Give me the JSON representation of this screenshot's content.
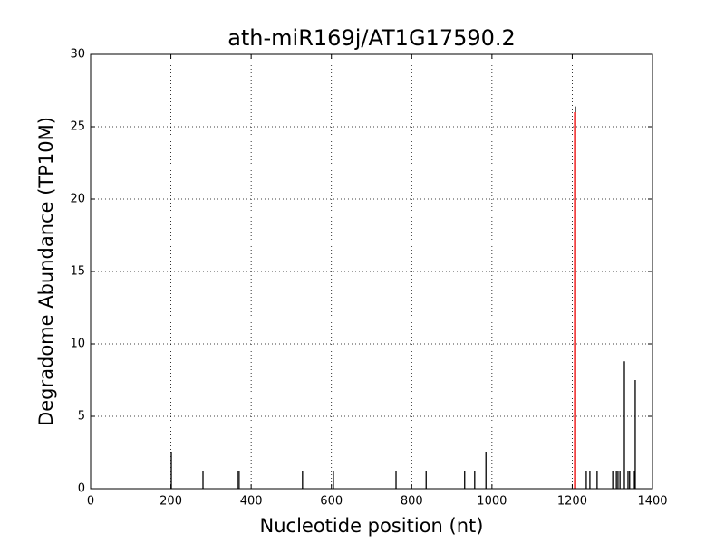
{
  "chart_data": {
    "type": "bar",
    "title": "ath-miR169j/AT1G17590.2",
    "xlabel": "Nucleotide position (nt)",
    "ylabel": "Degradome Abundance (TP10M)",
    "xlim": [
      0,
      1400
    ],
    "ylim": [
      0,
      30
    ],
    "xticks": [
      0,
      200,
      400,
      600,
      800,
      1000,
      1200,
      1400
    ],
    "yticks": [
      0,
      5,
      10,
      15,
      20,
      25,
      30
    ],
    "grid": true,
    "series": [
      {
        "color": "#000000",
        "x": [
          201,
          280,
          366,
          370,
          528,
          605,
          761,
          836,
          932,
          957,
          985,
          1208,
          1235,
          1244,
          1262,
          1301,
          1310,
          1314,
          1319,
          1330,
          1339,
          1343,
          1355,
          1357
        ],
        "values": [
          2.5,
          1.25,
          1.25,
          1.25,
          1.25,
          1.25,
          1.25,
          1.25,
          1.25,
          1.25,
          2.5,
          26.4,
          1.25,
          1.25,
          1.25,
          1.25,
          1.25,
          1.25,
          1.25,
          8.8,
          1.25,
          1.25,
          1.25,
          7.5
        ]
      },
      {
        "color": "#ff0000",
        "x": [
          1207
        ],
        "values": [
          26.0
        ]
      }
    ]
  }
}
